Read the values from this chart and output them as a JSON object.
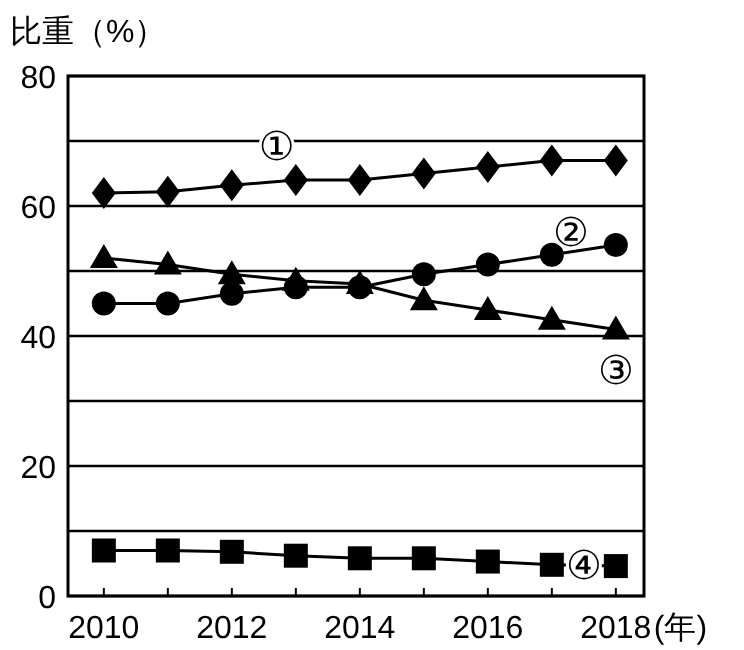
{
  "chart_data": {
    "type": "line",
    "ylabel": "比重（%）",
    "xlabel": "(年)",
    "x": [
      2010,
      2011,
      2012,
      2013,
      2014,
      2015,
      2016,
      2017,
      2018
    ],
    "xlim": [
      2009.44,
      2018.44
    ],
    "xticks": [
      2010,
      {
        "value": 2011,
        "label": null
      },
      2012,
      {
        "value": 2013,
        "label": null
      },
      2014,
      {
        "value": 2015,
        "label": null
      },
      2016,
      {
        "value": 2017,
        "label": null
      },
      2018
    ],
    "ylim": [
      0,
      80
    ],
    "yticks": [
      0,
      {
        "value": 10,
        "label": null
      },
      20,
      {
        "value": 30,
        "label": null
      },
      40,
      {
        "value": 50,
        "label": null
      },
      60,
      {
        "value": 70,
        "label": null
      },
      80
    ],
    "grid": "y",
    "line_style": "solid",
    "series": [
      {
        "name": "①",
        "color": "#000000",
        "marker": "diamond",
        "values": [
          62,
          62.2,
          63.2,
          64,
          64,
          65,
          66,
          67,
          67
        ]
      },
      {
        "name": "②",
        "color": "#000000",
        "marker": "circle",
        "values": [
          45,
          45,
          46.5,
          47.5,
          47.5,
          49.5,
          51,
          52.5,
          54
        ]
      },
      {
        "name": "③",
        "color": "#000000",
        "marker": "triangle",
        "values": [
          52,
          51,
          49.5,
          48.5,
          48,
          45.5,
          44,
          42.5,
          41
        ]
      },
      {
        "name": "④",
        "color": "#000000",
        "marker": "square",
        "values": [
          7,
          7,
          6.8,
          6.2,
          5.8,
          5.8,
          5.3,
          4.8,
          4.6
        ]
      }
    ]
  }
}
